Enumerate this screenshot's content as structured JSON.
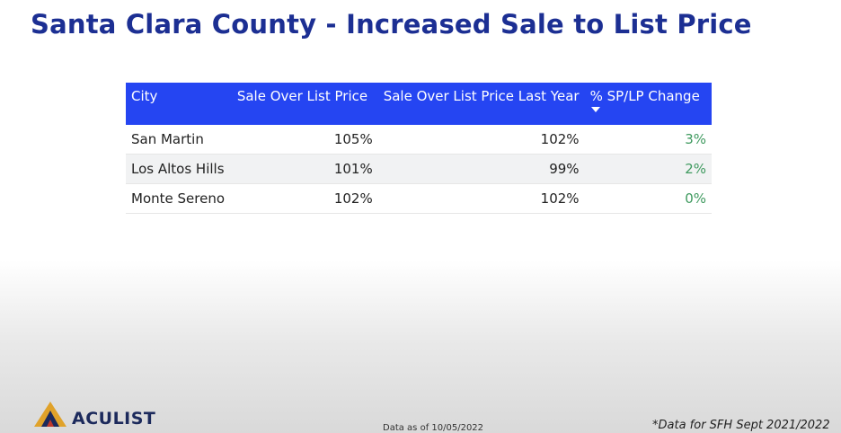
{
  "header": {
    "title": "Santa Clara County - Increased Sale to List Price"
  },
  "table": {
    "columns": [
      "City",
      "Sale Over List Price",
      "Sale Over List Price Last Year",
      "% SP/LP Change"
    ],
    "rows": [
      [
        "San Martin",
        "105%",
        "102%",
        "3%"
      ],
      [
        "Los Altos Hills",
        "101%",
        "99%",
        "2%"
      ],
      [
        "Monte Sereno",
        "102%",
        "102%",
        "0%"
      ]
    ]
  },
  "footer": {
    "logo": "ACULIST",
    "data_as_of": "Data as of 10/05/2022",
    "note": "*Data for SFH Sept 2021/2022"
  }
}
